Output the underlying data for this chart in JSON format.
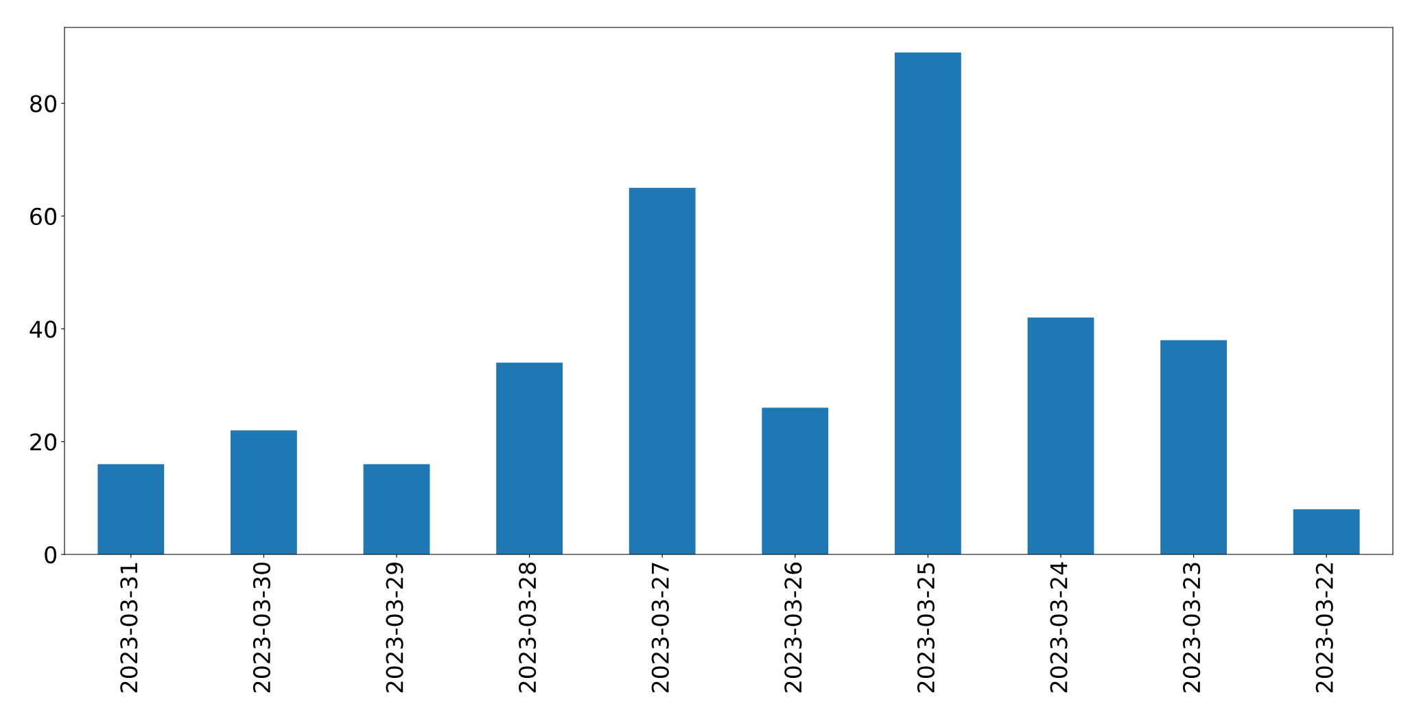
{
  "chart_data": {
    "type": "bar",
    "categories": [
      "2023-03-31",
      "2023-03-30",
      "2023-03-29",
      "2023-03-28",
      "2023-03-27",
      "2023-03-26",
      "2023-03-25",
      "2023-03-24",
      "2023-03-23",
      "2023-03-22"
    ],
    "values": [
      16,
      22,
      16,
      34,
      65,
      26,
      89,
      42,
      38,
      8
    ],
    "color": "#1f77b4",
    "ylim": [
      0,
      93.45
    ],
    "yticks": [
      0,
      20,
      40,
      60,
      80
    ],
    "grid": false,
    "legend": false
  }
}
